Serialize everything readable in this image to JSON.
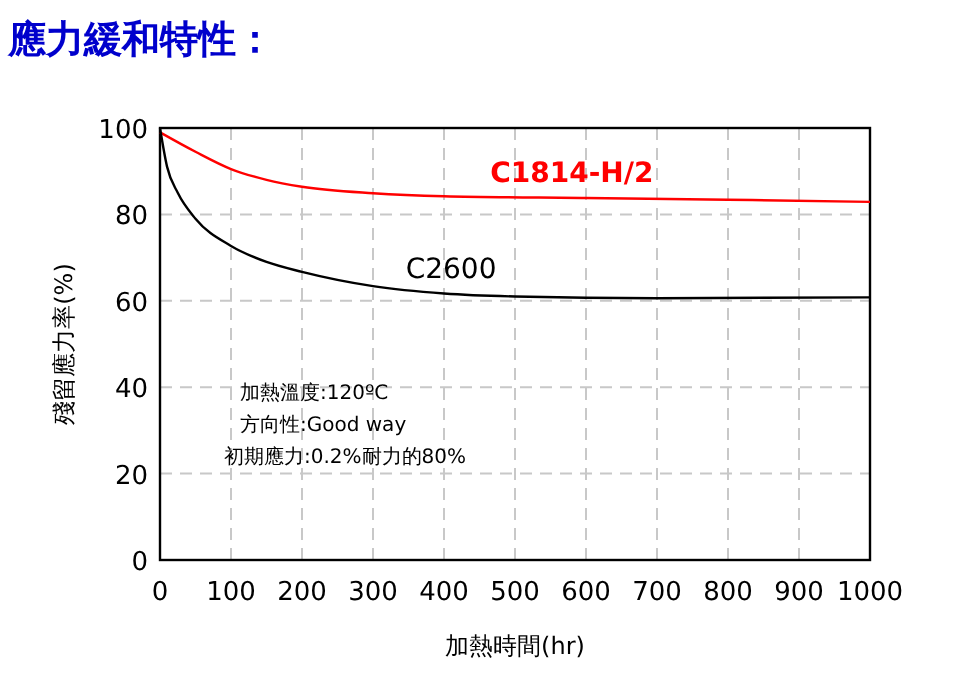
{
  "chart_data": {
    "type": "line",
    "title": "應力緩和特性：",
    "xlabel": "加熱時間(hr)",
    "ylabel": "殘留應力率(%)",
    "xlim": [
      0,
      1000
    ],
    "xticks": [
      0,
      100,
      200,
      300,
      400,
      500,
      600,
      700,
      800,
      900,
      1000
    ],
    "ylim": [
      0,
      100
    ],
    "yticks": [
      0,
      20,
      40,
      60,
      80,
      100
    ],
    "grid": true,
    "legend": false,
    "marker": "none",
    "line_style": "solid",
    "series": [
      {
        "name": "C1814-H/2",
        "color": "#ff0000",
        "x": [
          0,
          50,
          100,
          150,
          200,
          300,
          400,
          600,
          800,
          1000
        ],
        "values": [
          99,
          94.5,
          90.5,
          88,
          86.4,
          84.9,
          84.2,
          83.8,
          83.4,
          82.9
        ]
      },
      {
        "name": "C2600",
        "color": "#000000",
        "x": [
          0,
          10,
          25,
          50,
          100,
          150,
          200,
          300,
          400,
          500,
          700,
          1000
        ],
        "values": [
          100,
          91,
          85,
          79,
          72.7,
          69,
          66.7,
          63.4,
          61.7,
          61,
          60.6,
          60.8
        ]
      }
    ],
    "annotations": [
      "加熱溫度:120ºC",
      "方向性:Good way",
      "初期應力:0.2%耐力的80%"
    ]
  }
}
